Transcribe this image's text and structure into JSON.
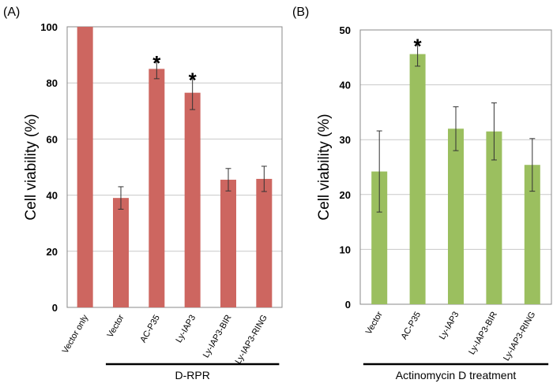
{
  "chart_data": [
    {
      "type": "bar",
      "panel_label": "(A)",
      "title": "",
      "xlabel": "",
      "ylabel": "Cell viability (%)",
      "ylim": [
        0,
        100
      ],
      "yticks": [
        0,
        20,
        40,
        60,
        80,
        100
      ],
      "grid": true,
      "color": "#cd6660",
      "categories": [
        "Vector only",
        "Vector",
        "AC-P35",
        "Ly-IAP3",
        "Ly-IAP3-BIR",
        "Ly-IAP3-RING"
      ],
      "values": [
        100,
        39,
        85,
        76.5,
        45.5,
        45.8
      ],
      "errors": [
        0,
        4,
        3.5,
        6,
        4,
        4.5
      ],
      "significant": [
        false,
        false,
        true,
        true,
        false,
        false
      ],
      "significance_marker": "*",
      "group_label": "D-RPR",
      "group_categories": [
        1,
        5
      ]
    },
    {
      "type": "bar",
      "panel_label": "(B)",
      "title": "",
      "xlabel": "",
      "ylabel": "Cell viability (%)",
      "ylim": [
        0,
        50
      ],
      "yticks": [
        0,
        10,
        20,
        30,
        40,
        50
      ],
      "grid": true,
      "color": "#9bbf5f",
      "categories": [
        "Vector",
        "AC-P35",
        "Ly-IAP3",
        "Ly-IAP3-BIR",
        "Ly-IAP3-RING"
      ],
      "values": [
        24.2,
        45.6,
        32,
        31.5,
        25.4
      ],
      "errors": [
        7.4,
        2.2,
        4,
        5.2,
        4.8
      ],
      "significant": [
        false,
        true,
        false,
        false,
        false
      ],
      "significance_marker": "*",
      "group_label": "Actinomycin D treatment",
      "group_categories": [
        0,
        4
      ]
    }
  ]
}
